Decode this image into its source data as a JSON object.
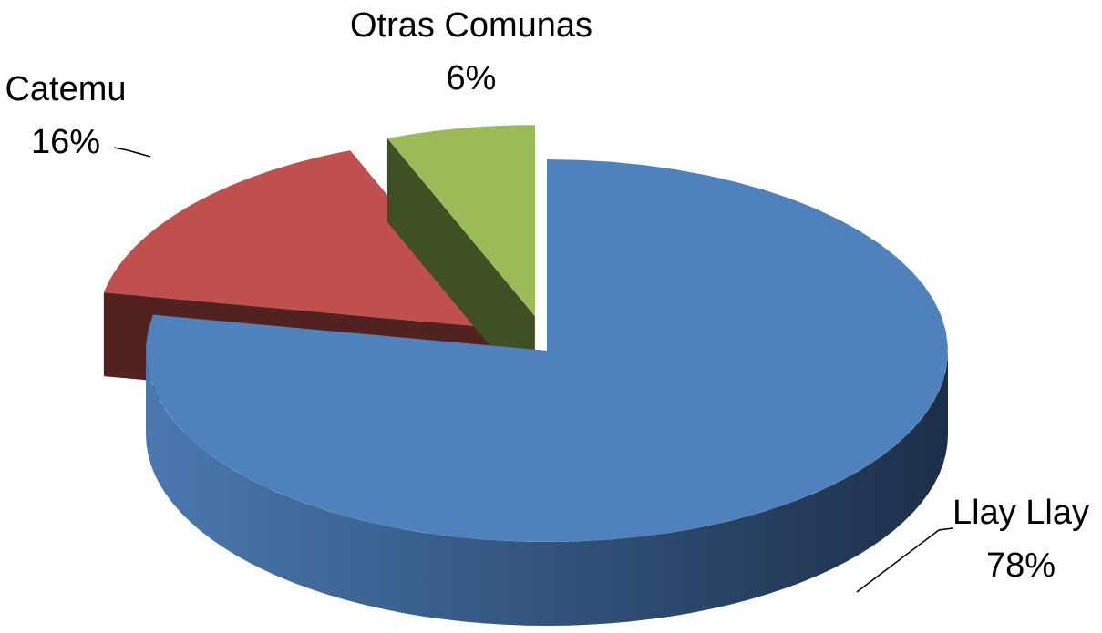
{
  "chart_data": {
    "type": "pie3d",
    "categories": [
      "Llay Llay",
      "Catemu",
      "Otras Comunas"
    ],
    "values": [
      78,
      16,
      6
    ],
    "value_labels": [
      "78%",
      "16%",
      "6%"
    ],
    "colors": [
      "#4f81bd",
      "#c0504d",
      "#9bbb59"
    ]
  }
}
